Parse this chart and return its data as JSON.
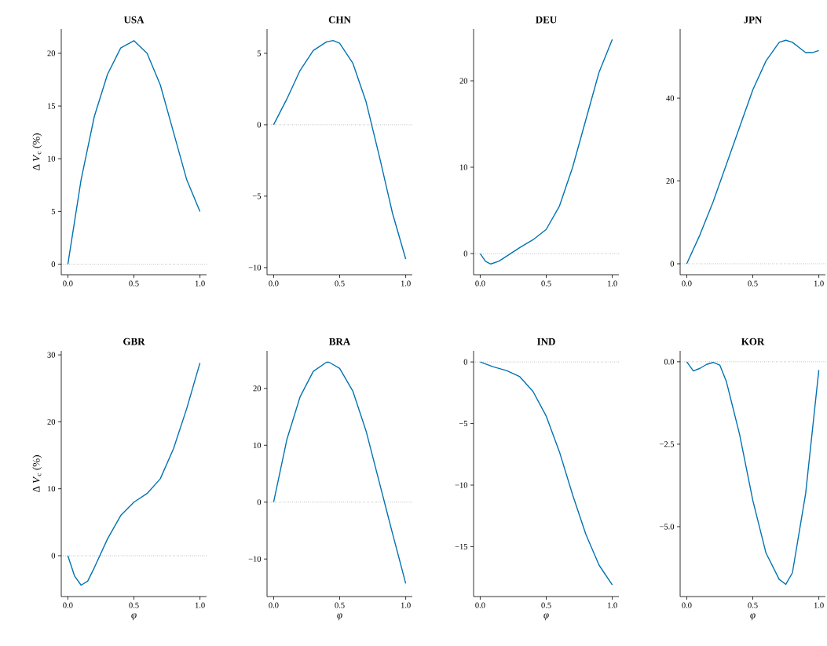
{
  "chart_data": [
    {
      "type": "line",
      "title": "USA",
      "ylabel": "Δ *V*$_{c}$ (%)",
      "x": [
        0,
        0.1,
        0.2,
        0.3,
        0.4,
        0.5,
        0.6,
        0.7,
        0.8,
        0.9,
        1.0
      ],
      "series": [
        {
          "color": "#0173b2",
          "values": [
            0,
            8,
            14,
            18,
            20.5,
            21.2,
            20,
            17,
            12.5,
            8,
            5
          ]
        }
      ],
      "xlim": [
        -0.05,
        1.05
      ],
      "ylim": [
        -1,
        22.3
      ],
      "xticks": [
        {
          "value": 0,
          "label": "0.0"
        },
        {
          "value": 0.5,
          "label": "0.5"
        },
        {
          "value": 1,
          "label": "1.0"
        }
      ],
      "yticks": [
        0,
        5,
        10,
        15,
        20
      ],
      "ref_lines": [
        {
          "axis": "y",
          "value": 0,
          "line_style": "dotted"
        }
      ]
    },
    {
      "type": "line",
      "title": "CHN",
      "x": [
        0,
        0.1,
        0.2,
        0.3,
        0.4,
        0.45,
        0.5,
        0.6,
        0.7,
        0.8,
        0.9,
        1.0
      ],
      "series": [
        {
          "color": "#0173b2",
          "values": [
            0,
            1.8,
            3.8,
            5.2,
            5.8,
            5.9,
            5.7,
            4.3,
            1.6,
            -2.2,
            -6.2,
            -9.4
          ]
        }
      ],
      "xlim": [
        -0.05,
        1.05
      ],
      "ylim": [
        -10.5,
        6.7
      ],
      "xticks": [
        {
          "value": 0,
          "label": "0.0"
        },
        {
          "value": 0.5,
          "label": "0.5"
        },
        {
          "value": 1,
          "label": "1.0"
        }
      ],
      "yticks": [
        {
          "value": -10,
          "label": "−10"
        },
        {
          "value": -5,
          "label": "−5"
        },
        0,
        5
      ],
      "ref_lines": [
        {
          "axis": "y",
          "value": 0,
          "line_style": "dotted"
        }
      ]
    },
    {
      "type": "line",
      "title": "DEU",
      "x": [
        0,
        0.04,
        0.08,
        0.14,
        0.2,
        0.3,
        0.4,
        0.5,
        0.6,
        0.7,
        0.8,
        0.9,
        1.0
      ],
      "series": [
        {
          "color": "#0173b2",
          "values": [
            0,
            -0.9,
            -1.2,
            -0.9,
            -0.3,
            0.7,
            1.6,
            2.8,
            5.5,
            10,
            15.5,
            21,
            24.8
          ]
        }
      ],
      "xlim": [
        -0.05,
        1.05
      ],
      "ylim": [
        -2.45,
        26
      ],
      "xticks": [
        {
          "value": 0,
          "label": "0.0"
        },
        {
          "value": 0.5,
          "label": "0.5"
        },
        {
          "value": 1,
          "label": "1.0"
        }
      ],
      "yticks": [
        0,
        10,
        20
      ],
      "ref_lines": [
        {
          "axis": "y",
          "value": 0,
          "line_style": "dotted"
        }
      ]
    },
    {
      "type": "line",
      "title": "JPN",
      "x": [
        0,
        0.1,
        0.2,
        0.3,
        0.4,
        0.5,
        0.6,
        0.7,
        0.75,
        0.8,
        0.9,
        0.95,
        1.0
      ],
      "series": [
        {
          "color": "#0173b2",
          "values": [
            0,
            7,
            15,
            24,
            33,
            42,
            49,
            53.5,
            54,
            53.5,
            51,
            51,
            51.5
          ]
        }
      ],
      "xlim": [
        -0.05,
        1.05
      ],
      "ylim": [
        -2.65,
        56.7
      ],
      "xticks": [
        {
          "value": 0,
          "label": "0.0"
        },
        {
          "value": 0.5,
          "label": "0.5"
        },
        {
          "value": 1,
          "label": "1.0"
        }
      ],
      "yticks": [
        0,
        20,
        40
      ],
      "ref_lines": [
        {
          "axis": "y",
          "value": 0,
          "line_style": "dotted"
        }
      ]
    },
    {
      "type": "line",
      "title": "GBR",
      "xlabel": "φ",
      "ylabel": "Δ *V*$_{c}$ (%)",
      "x": [
        0,
        0.05,
        0.1,
        0.15,
        0.2,
        0.3,
        0.4,
        0.5,
        0.6,
        0.7,
        0.8,
        0.9,
        1.0
      ],
      "series": [
        {
          "color": "#0173b2",
          "values": [
            0,
            -3,
            -4.4,
            -3.8,
            -1.8,
            2.5,
            6,
            8,
            9.3,
            11.5,
            16,
            22,
            28.8
          ]
        }
      ],
      "xlim": [
        -0.05,
        1.05
      ],
      "ylim": [
        -6.1,
        30.6
      ],
      "xticks": [
        {
          "value": 0,
          "label": "0.0"
        },
        {
          "value": 0.5,
          "label": "0.5"
        },
        {
          "value": 1,
          "label": "1.0"
        }
      ],
      "yticks": [
        0,
        10,
        20,
        30
      ],
      "ref_lines": [
        {
          "axis": "y",
          "value": 0,
          "line_style": "dotted"
        }
      ]
    },
    {
      "type": "line",
      "title": "BRA",
      "xlabel": "φ",
      "x": [
        0,
        0.1,
        0.2,
        0.3,
        0.4,
        0.42,
        0.5,
        0.6,
        0.7,
        0.8,
        0.85,
        0.9,
        1.0
      ],
      "series": [
        {
          "color": "#0173b2",
          "values": [
            0,
            11,
            18.5,
            23,
            24.6,
            24.6,
            23.5,
            19.5,
            12.5,
            3.5,
            -1,
            -5.5,
            -14.3
          ]
        }
      ],
      "xlim": [
        -0.05,
        1.05
      ],
      "ylim": [
        -16.6,
        26.6
      ],
      "xticks": [
        {
          "value": 0,
          "label": "0.0"
        },
        {
          "value": 0.5,
          "label": "0.5"
        },
        {
          "value": 1,
          "label": "1.0"
        }
      ],
      "yticks": [
        {
          "value": -10,
          "label": "−10"
        },
        0,
        10,
        20
      ],
      "ref_lines": [
        {
          "axis": "y",
          "value": 0,
          "line_style": "dotted"
        }
      ]
    },
    {
      "type": "line",
      "title": "IND",
      "xlabel": "φ",
      "x": [
        0,
        0.1,
        0.2,
        0.3,
        0.4,
        0.5,
        0.6,
        0.7,
        0.8,
        0.9,
        1.0
      ],
      "series": [
        {
          "color": "#0173b2",
          "values": [
            0,
            -0.4,
            -0.7,
            -1.2,
            -2.4,
            -4.4,
            -7.3,
            -10.8,
            -14,
            -16.5,
            -18.1
          ]
        }
      ],
      "xlim": [
        -0.05,
        1.05
      ],
      "ylim": [
        -19.05,
        0.9
      ],
      "xticks": [
        {
          "value": 0,
          "label": "0.0"
        },
        {
          "value": 0.5,
          "label": "0.5"
        },
        {
          "value": 1,
          "label": "1.0"
        }
      ],
      "yticks": [
        {
          "value": -15,
          "label": "−15"
        },
        {
          "value": -10,
          "label": "−10"
        },
        {
          "value": -5,
          "label": "−5"
        },
        0
      ],
      "ref_lines": [
        {
          "axis": "y",
          "value": 0,
          "line_style": "dotted"
        }
      ]
    },
    {
      "type": "line",
      "title": "KOR",
      "xlabel": "φ",
      "x": [
        0,
        0.05,
        0.1,
        0.15,
        0.2,
        0.25,
        0.3,
        0.4,
        0.5,
        0.6,
        0.7,
        0.75,
        0.8,
        0.9,
        1.0
      ],
      "series": [
        {
          "color": "#0173b2",
          "values": [
            0,
            -0.28,
            -0.2,
            -0.08,
            -0.02,
            -0.1,
            -0.6,
            -2.2,
            -4.2,
            -5.8,
            -6.6,
            -6.75,
            -6.4,
            -4,
            -0.25
          ]
        }
      ],
      "xlim": [
        -0.05,
        1.05
      ],
      "ylim": [
        -7.12,
        0.33
      ],
      "xticks": [
        {
          "value": 0,
          "label": "0.0"
        },
        {
          "value": 0.5,
          "label": "0.5"
        },
        {
          "value": 1,
          "label": "1.0"
        }
      ],
      "yticks": [
        {
          "value": -5,
          "label": "−5.0"
        },
        {
          "value": -2.5,
          "label": "−2.5"
        },
        {
          "value": 0,
          "label": "0.0"
        }
      ],
      "ref_lines": [
        {
          "axis": "y",
          "value": 0,
          "line_style": "dotted"
        }
      ]
    }
  ]
}
